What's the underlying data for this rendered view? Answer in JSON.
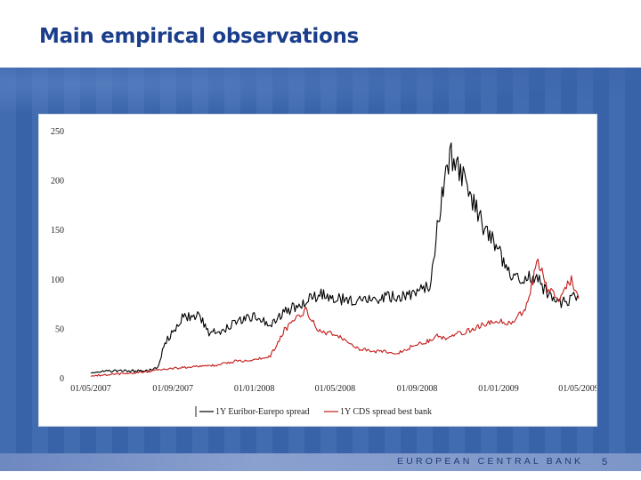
{
  "slide": {
    "title": "Main empirical observations",
    "footer_org": "EUROPEAN CENTRAL BANK",
    "page_number": "5"
  },
  "colors": {
    "title": "#1a3e8c",
    "band": "#3a66ad",
    "series_1": "#000000",
    "series_2": "#c41a1a"
  },
  "chart_data": {
    "type": "line",
    "title": "",
    "xlabel": "",
    "ylabel": "",
    "ylim": [
      0,
      250
    ],
    "xlim": [
      "2007-05-01",
      "2009-05-01"
    ],
    "x_ticks": [
      "01/05/2007",
      "01/09/2007",
      "01/01/2008",
      "01/05/2008",
      "01/09/2008",
      "01/01/2009",
      "01/05/2009"
    ],
    "y_ticks": [
      "0",
      "50",
      "100",
      "150",
      "200",
      "250"
    ],
    "legend_placement": "bottom",
    "x": [
      "2007-05-01",
      "2007-06-15",
      "2007-07-25",
      "2007-08-09",
      "2007-08-20",
      "2007-09-15",
      "2007-10-10",
      "2007-10-25",
      "2007-11-15",
      "2007-12-05",
      "2008-01-01",
      "2008-01-25",
      "2008-02-15",
      "2008-03-18",
      "2008-04-10",
      "2008-05-01",
      "2008-06-01",
      "2008-07-01",
      "2008-08-01",
      "2008-09-01",
      "2008-09-20",
      "2008-10-01",
      "2008-10-10",
      "2008-10-20",
      "2008-11-05",
      "2008-11-25",
      "2008-12-15",
      "2009-01-01",
      "2009-01-20",
      "2009-02-10",
      "2009-03-01",
      "2009-03-15",
      "2009-04-01",
      "2009-04-20",
      "2009-05-01"
    ],
    "series": [
      {
        "name": "1Y Euribor-Eurepo spread",
        "values": [
          6,
          7,
          7,
          10,
          35,
          60,
          63,
          46,
          48,
          58,
          62,
          55,
          66,
          78,
          85,
          80,
          78,
          80,
          82,
          85,
          95,
          150,
          195,
          225,
          210,
          175,
          145,
          130,
          100,
          103,
          100,
          85,
          75,
          80,
          82
        ]
      },
      {
        "name": "1Y CDS spread best bank",
        "values": [
          2,
          4,
          6,
          8,
          9,
          10,
          12,
          12,
          14,
          17,
          18,
          22,
          48,
          68,
          45,
          45,
          30,
          27,
          25,
          34,
          38,
          42,
          40,
          42,
          45,
          50,
          55,
          58,
          55,
          70,
          118,
          90,
          80,
          100,
          80
        ]
      }
    ]
  }
}
